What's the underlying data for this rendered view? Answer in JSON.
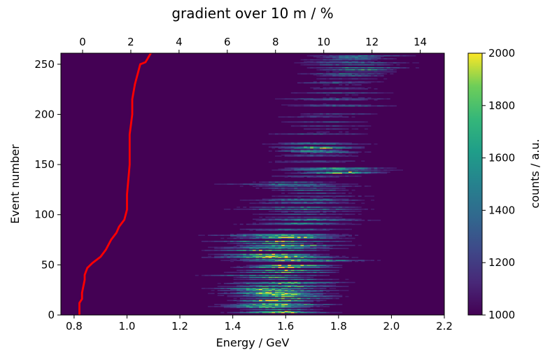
{
  "chart_data": {
    "type": "heatmap",
    "title": "",
    "xlabel": "Energy / GeV",
    "ylabel": "Event number",
    "top_xlabel": "gradient over 10 m / %",
    "colorbar_label": "counts / a.u.",
    "xlim": [
      0.75,
      2.2
    ],
    "ylim": [
      0,
      261
    ],
    "top_xlim": [
      -0.9,
      15.0
    ],
    "clim": [
      1000,
      2000
    ],
    "colormap": "viridis",
    "x_ticks": [
      "0.8",
      "1.0",
      "1.2",
      "1.4",
      "1.6",
      "1.8",
      "2.0",
      "2.2"
    ],
    "x_tick_values": [
      0.8,
      1.0,
      1.2,
      1.4,
      1.6,
      1.8,
      2.0,
      2.2
    ],
    "y_ticks": [
      "0",
      "50",
      "100",
      "150",
      "200",
      "250"
    ],
    "y_tick_values": [
      0,
      50,
      100,
      150,
      200,
      250
    ],
    "top_ticks": [
      "0",
      "2",
      "4",
      "6",
      "8",
      "10",
      "12",
      "14"
    ],
    "top_tick_values": [
      0,
      2,
      4,
      6,
      8,
      10,
      12,
      14
    ],
    "colorbar_ticks": [
      "1000",
      "1200",
      "1400",
      "1600",
      "1800",
      "2000"
    ],
    "colorbar_tick_values": [
      1000,
      1200,
      1400,
      1600,
      1800,
      2000
    ],
    "gradient_curve": {
      "color": "#ff0000",
      "x": [
        0.82,
        0.82,
        0.83,
        0.83,
        0.84,
        0.84,
        0.85,
        0.87,
        0.9,
        0.92,
        0.94,
        0.96,
        0.97,
        0.99,
        1.0,
        1.0,
        1.01,
        1.01,
        1.02,
        1.02,
        1.03,
        1.04,
        1.05,
        1.07,
        1.09
      ],
      "y": [
        0,
        12,
        16,
        22,
        35,
        40,
        47,
        52,
        58,
        65,
        75,
        82,
        88,
        95,
        105,
        120,
        150,
        180,
        200,
        215,
        230,
        240,
        250,
        252,
        261
      ]
    },
    "intensity_profile": [
      {
        "y": 5,
        "center": 1.56,
        "width": 0.11,
        "peak": 2000
      },
      {
        "y": 12,
        "center": 1.58,
        "width": 0.12,
        "peak": 2000
      },
      {
        "y": 18,
        "center": 1.6,
        "width": 0.12,
        "peak": 2000
      },
      {
        "y": 25,
        "center": 1.55,
        "width": 0.12,
        "peak": 1900
      },
      {
        "y": 33,
        "center": 1.6,
        "width": 0.12,
        "peak": 1800
      },
      {
        "y": 40,
        "center": 1.55,
        "width": 0.13,
        "peak": 1750
      },
      {
        "y": 47,
        "center": 1.58,
        "width": 0.12,
        "peak": 2000
      },
      {
        "y": 55,
        "center": 1.62,
        "width": 0.14,
        "peak": 1850
      },
      {
        "y": 63,
        "center": 1.52,
        "width": 0.13,
        "peak": 1900
      },
      {
        "y": 70,
        "center": 1.6,
        "width": 0.14,
        "peak": 1800
      },
      {
        "y": 78,
        "center": 1.58,
        "width": 0.14,
        "peak": 1900
      },
      {
        "y": 86,
        "center": 1.65,
        "width": 0.15,
        "peak": 1500
      },
      {
        "y": 93,
        "center": 1.7,
        "width": 0.14,
        "peak": 1450
      },
      {
        "y": 100,
        "center": 1.68,
        "width": 0.14,
        "peak": 1500
      },
      {
        "y": 108,
        "center": 1.65,
        "width": 0.15,
        "peak": 1450
      },
      {
        "y": 115,
        "center": 1.7,
        "width": 0.14,
        "peak": 1400
      },
      {
        "y": 123,
        "center": 1.68,
        "width": 0.15,
        "peak": 1450
      },
      {
        "y": 131,
        "center": 1.62,
        "width": 0.14,
        "peak": 1400
      },
      {
        "y": 138,
        "center": 1.7,
        "width": 0.14,
        "peak": 1400
      },
      {
        "y": 143,
        "center": 1.82,
        "width": 0.12,
        "peak": 1900
      },
      {
        "y": 150,
        "center": 1.7,
        "width": 0.13,
        "peak": 1300
      },
      {
        "y": 158,
        "center": 1.75,
        "width": 0.13,
        "peak": 1250
      },
      {
        "y": 166,
        "center": 1.7,
        "width": 0.1,
        "peak": 1900
      },
      {
        "y": 173,
        "center": 1.7,
        "width": 0.13,
        "peak": 1250
      },
      {
        "y": 180,
        "center": 1.75,
        "width": 0.13,
        "peak": 1350
      },
      {
        "y": 188,
        "center": 1.78,
        "width": 0.13,
        "peak": 1300
      },
      {
        "y": 196,
        "center": 1.75,
        "width": 0.12,
        "peak": 1300
      },
      {
        "y": 203,
        "center": 1.8,
        "width": 0.13,
        "peak": 1250
      },
      {
        "y": 210,
        "center": 1.78,
        "width": 0.13,
        "peak": 1350
      },
      {
        "y": 218,
        "center": 1.8,
        "width": 0.13,
        "peak": 1250
      },
      {
        "y": 226,
        "center": 1.82,
        "width": 0.12,
        "peak": 1300
      },
      {
        "y": 233,
        "center": 1.8,
        "width": 0.13,
        "peak": 1450
      },
      {
        "y": 240,
        "center": 1.85,
        "width": 0.12,
        "peak": 1500
      },
      {
        "y": 246,
        "center": 1.88,
        "width": 0.12,
        "peak": 1750
      },
      {
        "y": 252,
        "center": 1.85,
        "width": 0.12,
        "peak": 1450
      }
    ]
  }
}
